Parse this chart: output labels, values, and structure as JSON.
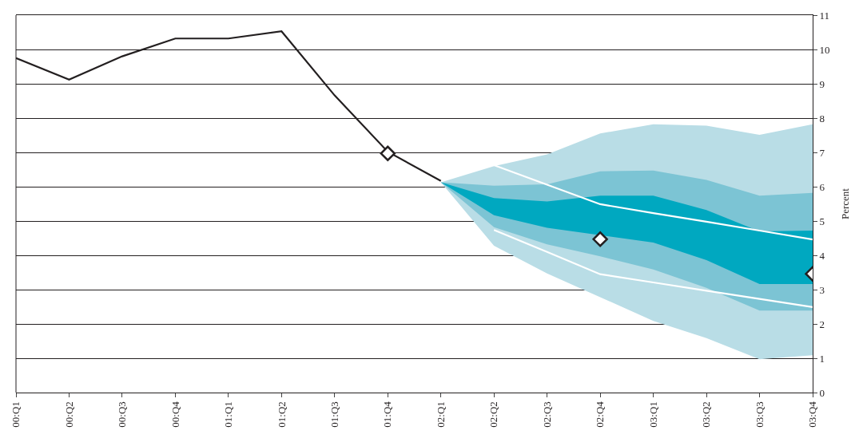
{
  "chart_data": {
    "type": "line",
    "ylabel": "Percent",
    "categories": [
      "00:Q1",
      "00:Q2",
      "00:Q3",
      "00:Q4",
      "01:Q1",
      "01:Q2",
      "01:Q3",
      "01:Q4",
      "02:Q1",
      "02:Q2",
      "02:Q3",
      "02:Q4",
      "03:Q1",
      "03:Q2",
      "03:Q3",
      "03:Q4"
    ],
    "ylim": [
      0,
      11
    ],
    "yticks": [
      0,
      1,
      2,
      3,
      4,
      5,
      6,
      7,
      8,
      9,
      10,
      11
    ],
    "grid": "y",
    "series": [
      {
        "type": "area",
        "color": "#b9dde6",
        "values": [
          null,
          null,
          null,
          null,
          null,
          null,
          null,
          null,
          null,
          null,
          null,
          null,
          null,
          null,
          null,
          null
        ],
        "upper": [
          null,
          null,
          null,
          null,
          null,
          null,
          null,
          null,
          6.13,
          6.6,
          6.94,
          7.55,
          7.82,
          7.78,
          7.51,
          7.82
        ],
        "lower": [
          null,
          null,
          null,
          null,
          null,
          null,
          null,
          null,
          6.13,
          4.28,
          3.47,
          2.78,
          2.09,
          1.59,
          0.97,
          1.09
        ]
      },
      {
        "type": "area",
        "color": "#7cc4d4",
        "values": [
          null,
          null,
          null,
          null,
          null,
          null,
          null,
          null,
          null,
          null,
          null,
          null,
          null,
          null,
          null,
          null
        ],
        "upper": [
          null,
          null,
          null,
          null,
          null,
          null,
          null,
          null,
          6.13,
          6.03,
          6.07,
          6.45,
          6.47,
          6.2,
          5.74,
          5.82
        ],
        "lower": [
          null,
          null,
          null,
          null,
          null,
          null,
          null,
          null,
          6.13,
          4.82,
          4.32,
          3.97,
          3.59,
          3.05,
          2.39,
          2.39
        ]
      },
      {
        "type": "area",
        "color": "#00a8c0",
        "values": [
          null,
          null,
          null,
          null,
          null,
          null,
          null,
          null,
          null,
          null,
          null,
          null,
          null,
          null,
          null,
          null
        ],
        "upper": [
          null,
          null,
          null,
          null,
          null,
          null,
          null,
          null,
          6.13,
          5.67,
          5.57,
          5.74,
          5.74,
          5.32,
          4.7,
          4.72
        ],
        "lower": [
          null,
          null,
          null,
          null,
          null,
          null,
          null,
          null,
          6.13,
          5.17,
          4.8,
          4.59,
          4.37,
          3.86,
          3.16,
          3.16
        ]
      },
      {
        "color": "#ffffff",
        "values": [
          null,
          null,
          null,
          null,
          null,
          null,
          null,
          null,
          null,
          6.63,
          6.06,
          5.49,
          5.23,
          4.98,
          4.72,
          4.46
        ]
      },
      {
        "color": "#ffffff",
        "values": [
          null,
          null,
          null,
          null,
          null,
          null,
          null,
          null,
          null,
          4.74,
          4.1,
          3.45,
          3.21,
          2.97,
          2.73,
          2.49
        ]
      },
      {
        "color": "#231f20",
        "values": [
          9.75,
          9.12,
          9.8,
          10.32,
          10.32,
          10.53,
          8.66,
          7.02,
          6.17,
          null,
          null,
          null,
          null,
          null,
          null,
          null
        ]
      },
      {
        "type": "scatter",
        "color": "#231f20",
        "marker": "diamond",
        "values": [
          null,
          null,
          null,
          null,
          null,
          null,
          null,
          6.97,
          null,
          null,
          null,
          4.47,
          null,
          null,
          null,
          3.46
        ]
      }
    ]
  }
}
